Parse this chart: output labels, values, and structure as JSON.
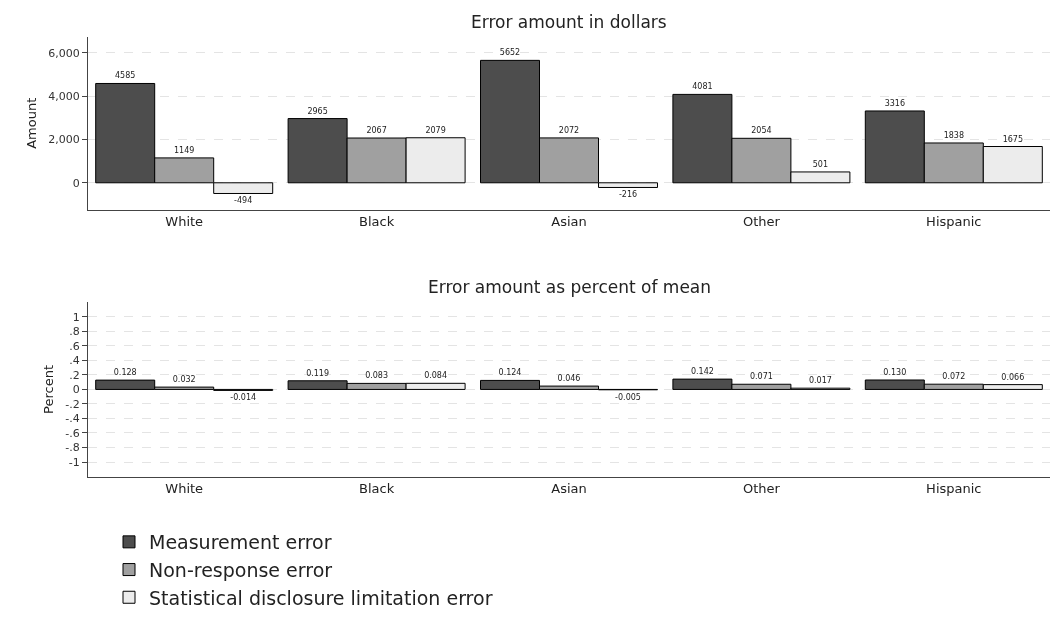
{
  "chart_data": [
    {
      "type": "bar",
      "title": "Error amount in dollars",
      "ylabel": "Amount",
      "categories": [
        "White",
        "Black",
        "Asian",
        "Other",
        "Hispanic"
      ],
      "series": [
        {
          "name": "Measurement error",
          "color": "#4d4d4d",
          "values": [
            4585,
            2965,
            5652,
            4081,
            3316
          ]
        },
        {
          "name": "Non-response error",
          "color": "#a0a0a0",
          "values": [
            1149,
            2067,
            2072,
            2054,
            1838
          ]
        },
        {
          "name": "Statistical disclosure limitation error",
          "color": "#ececec",
          "values": [
            -494,
            2079,
            -216,
            501,
            1675
          ]
        }
      ],
      "ylim": [
        -1250,
        6750
      ],
      "yticks": [
        0,
        {
          "value": 2000,
          "label": "2,000"
        },
        {
          "value": 4000,
          "label": "4,000"
        },
        {
          "value": 6000,
          "label": "6,000"
        }
      ],
      "grid": "y",
      "data_labels": true,
      "legend": "bottom"
    },
    {
      "type": "bar",
      "title": "Error amount as percent of mean",
      "ylabel": "Percent",
      "categories": [
        "White",
        "Black",
        "Asian",
        "Other",
        "Hispanic"
      ],
      "series": [
        {
          "color": "#4d4d4d",
          "values": [
            0.128,
            0.119,
            0.124,
            0.142,
            0.13
          ],
          "value_labels": [
            "0.128",
            "0.119",
            "0.124",
            "0.142",
            "0.130"
          ]
        },
        {
          "color": "#a0a0a0",
          "values": [
            0.032,
            0.083,
            0.046,
            0.071,
            0.072
          ],
          "value_labels": [
            "0.032",
            "0.083",
            "0.046",
            "0.071",
            "0.072"
          ]
        },
        {
          "color": "#ececec",
          "values": [
            -0.014,
            0.084,
            -0.005,
            0.017,
            0.066
          ],
          "value_labels": [
            "-0.014",
            "0.084",
            "-0.005",
            "0.017",
            "0.066"
          ]
        }
      ],
      "ylim": [
        -1.2,
        1.2
      ],
      "yticks": [
        1,
        {
          "value": 0.8,
          "label": ".8"
        },
        {
          "value": 0.6,
          "label": ".6"
        },
        {
          "value": 0.4,
          "label": ".4"
        },
        {
          "value": 0.2,
          "label": ".2"
        },
        0,
        {
          "value": -0.2,
          "label": "-.2"
        },
        {
          "value": -0.4,
          "label": "-.4"
        },
        {
          "value": -0.6,
          "label": "-.6"
        },
        {
          "value": -0.8,
          "label": "-.8"
        },
        -1
      ],
      "grid": "y"
    }
  ]
}
